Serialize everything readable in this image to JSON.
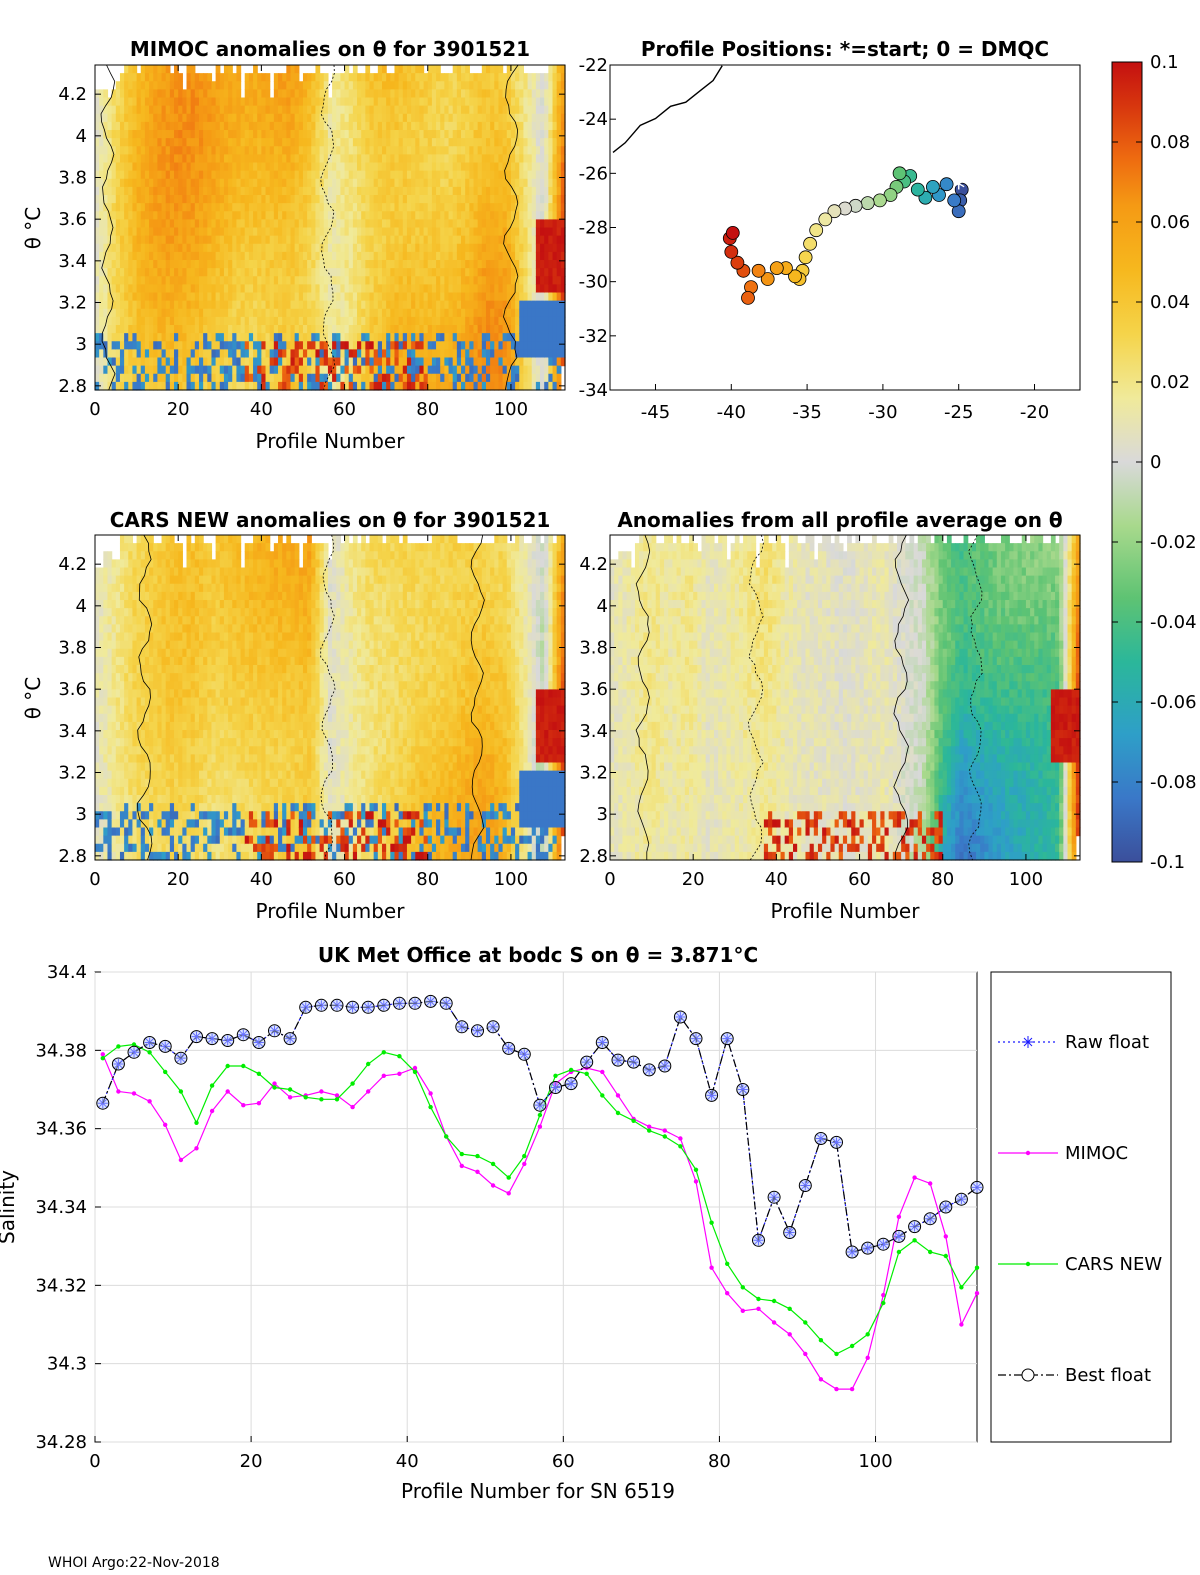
{
  "footer": "WHOI Argo:22-Nov-2018",
  "colorbar": {
    "tick_labels": [
      "0.1",
      "0.08",
      "0.06",
      "0.04",
      "0.02",
      "0",
      "-0.02",
      "-0.04",
      "-0.06",
      "-0.08",
      "-0.1"
    ],
    "range": [
      -0.1,
      0.1
    ],
    "colors": [
      "#3b4f9b",
      "#3a78c8",
      "#2e9fc8",
      "#2bb79a",
      "#5ec373",
      "#a8d98c",
      "#d9d9d9",
      "#f0ea9a",
      "#f5d44a",
      "#f6b81e",
      "#f59a14",
      "#ee6a10",
      "#d93a0e",
      "#c41010"
    ]
  },
  "panels": {
    "mimoc": {
      "title": "MIMOC anomalies on θ  for 3901521",
      "xlabel": "Profile Number",
      "ylabel": "θ °C",
      "xticks": [
        "0",
        "20",
        "40",
        "60",
        "80",
        "100"
      ],
      "yticks": [
        "4.2",
        "4",
        "3.8",
        "3.6",
        "3.4",
        "3.2",
        "3",
        "2.8"
      ],
      "xlim": [
        0,
        113
      ],
      "ylim": [
        2.78,
        4.34
      ]
    },
    "positions": {
      "title": "Profile Positions: *=start; 0 = DMQC",
      "xticks": [
        "-45",
        "-40",
        "-35",
        "-30",
        "-25",
        "-20"
      ],
      "yticks": [
        "-22",
        "-24",
        "-26",
        "-28",
        "-30",
        "-32",
        "-34"
      ],
      "xlim": [
        -48,
        -17
      ],
      "ylim": [
        -34,
        -22
      ]
    },
    "cars": {
      "title": "CARS NEW anomalies on θ for 3901521",
      "xlabel": "Profile Number",
      "ylabel": "θ °C",
      "xticks": [
        "0",
        "20",
        "40",
        "60",
        "80",
        "100"
      ],
      "yticks": [
        "4.2",
        "4",
        "3.8",
        "3.6",
        "3.4",
        "3.2",
        "3",
        "2.8"
      ],
      "xlim": [
        0,
        113
      ],
      "ylim": [
        2.78,
        4.34
      ]
    },
    "allavg": {
      "title": "Anomalies from all profile average on θ",
      "xlabel": "Profile Number",
      "xticks": [
        "0",
        "20",
        "40",
        "60",
        "80",
        "100"
      ],
      "yticks": [
        "4.2",
        "4",
        "3.8",
        "3.6",
        "3.4",
        "3.2",
        "3",
        "2.8"
      ],
      "xlim": [
        0,
        113
      ],
      "ylim": [
        2.78,
        4.34
      ]
    },
    "salinity": {
      "title": "UK Met Office at bodc S on θ = 3.871°C",
      "xlabel": "Profile Number for SN 6519",
      "ylabel": "Salinity",
      "xticks": [
        "0",
        "20",
        "40",
        "60",
        "80",
        "100"
      ],
      "yticks": [
        "34.4",
        "34.38",
        "34.36",
        "34.34",
        "34.32",
        "34.3",
        "34.28"
      ],
      "legend": [
        "Raw float",
        "MIMOC",
        "CARS NEW",
        "Best float"
      ]
    }
  },
  "chart_data": [
    {
      "type": "heatmap",
      "title": "MIMOC anomalies on θ  for 3901521",
      "xlabel": "Profile Number",
      "ylabel": "θ °C",
      "xlim": [
        0,
        113
      ],
      "ylim": [
        2.78,
        4.34
      ],
      "column_anomaly_trend": [
        0,
        0.02,
        0.035,
        0.045,
        0.05,
        0.05,
        0.045,
        0.04,
        0.04,
        0.045,
        0.05,
        0.04,
        0.01,
        0.02,
        0.04,
        0.05,
        0.05,
        0.045,
        0.04,
        0.045,
        0.055,
        0.05,
        0.02,
        -0.01,
        0.07
      ]
    },
    {
      "type": "scatter",
      "title": "Profile Positions: *=start; 0 = DMQC",
      "xlim": [
        -48,
        -17
      ],
      "ylim": [
        -34,
        -22
      ],
      "start_marker": [
        -25,
        -26.5
      ],
      "track_lon": [
        -24.8,
        -24.9,
        -25.0,
        -25.3,
        -25.8,
        -26.3,
        -26.7,
        -27.2,
        -27.7,
        -28.2,
        -28.6,
        -28.9,
        -29.1,
        -29.5,
        -30.2,
        -31.0,
        -31.8,
        -32.5,
        -33.2,
        -33.8,
        -34.4,
        -34.8,
        -35.1,
        -35.3,
        -35.5,
        -35.8,
        -36.4,
        -37.0,
        -37.6,
        -38.2,
        -38.7,
        -38.9,
        -39.2,
        -39.6,
        -40.0,
        -40.1,
        -39.9
      ],
      "track_lat": [
        -26.6,
        -27.0,
        -27.4,
        -27.0,
        -26.4,
        -26.8,
        -26.5,
        -26.9,
        -26.6,
        -26.1,
        -26.3,
        -26.0,
        -26.5,
        -26.8,
        -27.0,
        -27.1,
        -27.2,
        -27.3,
        -27.4,
        -27.7,
        -28.1,
        -28.6,
        -29.1,
        -29.6,
        -29.9,
        -29.8,
        -29.5,
        -29.5,
        -29.9,
        -29.6,
        -30.2,
        -30.6,
        -29.6,
        -29.3,
        -28.9,
        -28.4,
        -28.2
      ],
      "coast_lon": [
        -47.8,
        -47.0,
        -46.0,
        -45.0,
        -44.0,
        -43.0,
        -42.0,
        -41.2,
        -40.6
      ],
      "coast_lat": [
        -25.3,
        -24.8,
        -24.3,
        -23.9,
        -23.6,
        -23.3,
        -23.0,
        -22.5,
        -22.1
      ]
    },
    {
      "type": "heatmap",
      "title": "CARS NEW anomalies on θ for 3901521",
      "xlabel": "Profile Number",
      "ylabel": "θ °C",
      "xlim": [
        0,
        113
      ],
      "ylim": [
        2.78,
        4.34
      ],
      "column_anomaly_trend": [
        0,
        0.01,
        0.02,
        0.025,
        0.03,
        0.03,
        0.025,
        0.03,
        0.035,
        0.04,
        0.045,
        0.05,
        -0.005,
        0.01,
        0.025,
        0.03,
        0.035,
        0.04,
        0.04,
        0.045,
        0.045,
        0.035,
        0.01,
        -0.02,
        0.07
      ]
    },
    {
      "type": "heatmap",
      "title": "Anomalies from all profile average on θ",
      "xlabel": "Profile Number",
      "xlim": [
        0,
        113
      ],
      "ylim": [
        2.78,
        4.34
      ],
      "column_anomaly_trend": [
        0,
        0.005,
        0.01,
        0.005,
        0.01,
        0.0,
        0.005,
        0.01,
        0.015,
        0.005,
        0.0,
        0.0,
        -0.005,
        0.0,
        0.005,
        -0.01,
        -0.02,
        -0.06,
        -0.08,
        -0.07,
        -0.06,
        -0.055,
        -0.05,
        -0.045,
        0.07
      ]
    },
    {
      "type": "line",
      "title": "UK Met Office at bodc S on θ = 3.871°C",
      "xlabel": "Profile Number for SN 6519",
      "ylabel": "Salinity",
      "xlim": [
        0,
        113
      ],
      "ylim": [
        34.28,
        34.4
      ],
      "x": [
        1,
        3,
        5,
        7,
        9,
        11,
        13,
        15,
        17,
        19,
        21,
        23,
        25,
        27,
        29,
        31,
        33,
        35,
        37,
        39,
        41,
        43,
        45,
        47,
        49,
        51,
        53,
        55,
        57,
        59,
        61,
        63,
        65,
        67,
        69,
        71,
        73,
        75,
        77,
        79,
        81,
        83,
        85,
        87,
        89,
        91,
        93,
        95,
        97,
        99,
        101,
        103,
        105,
        107,
        109,
        111,
        113
      ],
      "series": [
        {
          "name": "Best float",
          "values": [
            34.3665,
            34.3765,
            34.3795,
            34.382,
            34.381,
            34.378,
            34.3835,
            34.383,
            34.3825,
            34.384,
            34.382,
            34.385,
            34.383,
            34.391,
            34.3915,
            34.3915,
            34.391,
            34.391,
            34.3915,
            34.392,
            34.392,
            34.3925,
            34.392,
            34.386,
            34.385,
            34.386,
            34.3805,
            34.379,
            34.366,
            34.3705,
            34.3715,
            34.377,
            34.382,
            34.3775,
            34.377,
            34.375,
            34.376,
            34.3885,
            34.383,
            34.3685,
            34.383,
            34.37,
            34.3315,
            34.3425,
            34.3335,
            34.3455,
            34.3575,
            34.3565,
            34.3285,
            34.3295,
            34.3305,
            34.3325,
            34.335,
            34.337,
            34.34,
            34.342,
            34.345
          ]
        },
        {
          "name": "Raw float",
          "values": [
            34.3665,
            34.3765,
            34.3795,
            34.382,
            34.381,
            34.378,
            34.3835,
            34.383,
            34.3825,
            34.384,
            34.382,
            34.385,
            34.383,
            34.391,
            34.3915,
            34.3915,
            34.391,
            34.391,
            34.3915,
            34.392,
            34.392,
            34.3925,
            34.392,
            34.386,
            34.385,
            34.386,
            34.3805,
            34.379,
            34.366,
            34.3705,
            34.3715,
            34.377,
            34.382,
            34.3775,
            34.377,
            34.375,
            34.376,
            34.3885,
            34.383,
            34.3685,
            34.383,
            34.37,
            34.3315,
            34.3425,
            34.3335,
            34.3455,
            34.3575,
            34.3565,
            34.3285,
            34.3295,
            34.3305,
            34.3325,
            34.335,
            34.337,
            34.34,
            34.342,
            34.345
          ]
        },
        {
          "name": "MIMOC",
          "values": [
            34.379,
            34.3695,
            34.369,
            34.367,
            34.361,
            34.352,
            34.355,
            34.3645,
            34.3695,
            34.366,
            34.3665,
            34.3715,
            34.368,
            34.3685,
            34.3695,
            34.3685,
            34.3655,
            34.3695,
            34.3735,
            34.374,
            34.3755,
            34.369,
            34.358,
            34.3505,
            34.349,
            34.3455,
            34.3435,
            34.351,
            34.3605,
            34.3715,
            34.3745,
            34.3755,
            34.3745,
            34.3685,
            34.3625,
            34.3605,
            34.3595,
            34.3575,
            34.3465,
            34.3245,
            34.318,
            34.3135,
            34.314,
            34.3105,
            34.3075,
            34.3025,
            34.296,
            34.2935,
            34.2935,
            34.3015,
            34.3175,
            34.3375,
            34.3475,
            34.346,
            34.3325,
            34.31,
            34.318
          ]
        },
        {
          "name": "CARS NEW",
          "values": [
            34.378,
            34.381,
            34.3815,
            34.3795,
            34.3745,
            34.3695,
            34.3615,
            34.371,
            34.376,
            34.376,
            34.374,
            34.3705,
            34.37,
            34.368,
            34.3675,
            34.3675,
            34.3715,
            34.3765,
            34.3795,
            34.3785,
            34.3745,
            34.3655,
            34.358,
            34.3535,
            34.353,
            34.351,
            34.3475,
            34.353,
            34.3635,
            34.3735,
            34.375,
            34.374,
            34.3685,
            34.364,
            34.362,
            34.3595,
            34.358,
            34.3555,
            34.3495,
            34.336,
            34.3255,
            34.3195,
            34.3165,
            34.316,
            34.314,
            34.3105,
            34.306,
            34.3025,
            34.3045,
            34.3075,
            34.3155,
            34.3285,
            34.3315,
            34.3285,
            34.3275,
            34.3195,
            34.3245
          ]
        }
      ]
    }
  ]
}
